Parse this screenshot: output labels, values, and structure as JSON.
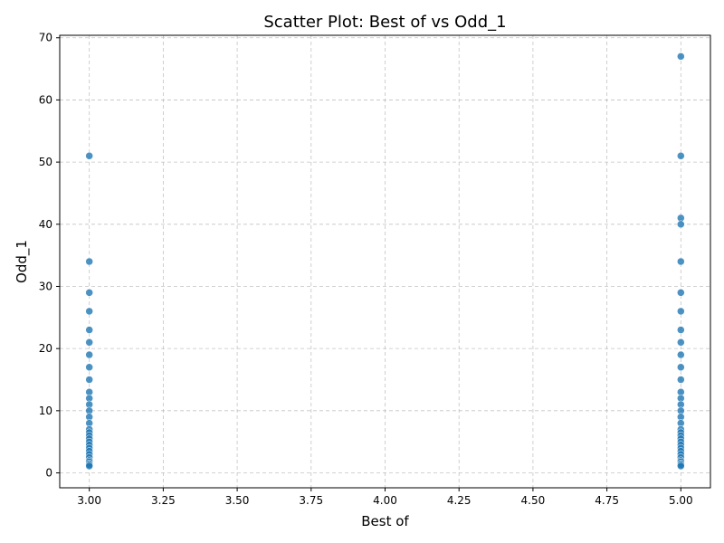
{
  "chart_data": {
    "type": "scatter",
    "title": "Scatter Plot: Best of vs Odd_1",
    "xlabel": "Best of",
    "ylabel": "Odd_1",
    "xlim": [
      2.9,
      5.1
    ],
    "ylim": [
      -2.4,
      70.4
    ],
    "grid": true,
    "xticks": [
      "3.00",
      "3.25",
      "3.50",
      "3.75",
      "4.00",
      "4.25",
      "4.50",
      "4.75",
      "5.00"
    ],
    "xtick_values": [
      3.0,
      3.25,
      3.5,
      3.75,
      4.0,
      4.25,
      4.5,
      4.75,
      5.0
    ],
    "yticks": [
      "0",
      "10",
      "20",
      "30",
      "40",
      "50",
      "60",
      "70"
    ],
    "ytick_values": [
      0,
      10,
      20,
      30,
      40,
      50,
      60,
      70
    ],
    "point_color": "#1f77b4",
    "series": [
      {
        "points": [
          {
            "x": 3,
            "y": 51
          },
          {
            "x": 3,
            "y": 34
          },
          {
            "x": 3,
            "y": 29
          },
          {
            "x": 3,
            "y": 26
          },
          {
            "x": 3,
            "y": 23
          },
          {
            "x": 3,
            "y": 21
          },
          {
            "x": 3,
            "y": 19
          },
          {
            "x": 3,
            "y": 17
          },
          {
            "x": 3,
            "y": 15
          },
          {
            "x": 3,
            "y": 13
          },
          {
            "x": 3,
            "y": 12
          },
          {
            "x": 3,
            "y": 11
          },
          {
            "x": 3,
            "y": 10
          },
          {
            "x": 3,
            "y": 9
          },
          {
            "x": 3,
            "y": 8
          },
          {
            "x": 3,
            "y": 7
          },
          {
            "x": 3,
            "y": 6.5
          },
          {
            "x": 3,
            "y": 6
          },
          {
            "x": 3,
            "y": 5.5
          },
          {
            "x": 3,
            "y": 5
          },
          {
            "x": 3,
            "y": 4.5
          },
          {
            "x": 3,
            "y": 4
          },
          {
            "x": 3,
            "y": 3.5
          },
          {
            "x": 3,
            "y": 3
          },
          {
            "x": 3,
            "y": 2.5
          },
          {
            "x": 3,
            "y": 2
          },
          {
            "x": 3,
            "y": 1.8
          },
          {
            "x": 3,
            "y": 1.5
          },
          {
            "x": 3,
            "y": 1.3
          },
          {
            "x": 3,
            "y": 1.1
          },
          {
            "x": 5,
            "y": 67
          },
          {
            "x": 5,
            "y": 51
          },
          {
            "x": 5,
            "y": 41
          },
          {
            "x": 5,
            "y": 40
          },
          {
            "x": 5,
            "y": 34
          },
          {
            "x": 5,
            "y": 29
          },
          {
            "x": 5,
            "y": 26
          },
          {
            "x": 5,
            "y": 23
          },
          {
            "x": 5,
            "y": 21
          },
          {
            "x": 5,
            "y": 19
          },
          {
            "x": 5,
            "y": 17
          },
          {
            "x": 5,
            "y": 15
          },
          {
            "x": 5,
            "y": 13
          },
          {
            "x": 5,
            "y": 12
          },
          {
            "x": 5,
            "y": 11
          },
          {
            "x": 5,
            "y": 10
          },
          {
            "x": 5,
            "y": 9
          },
          {
            "x": 5,
            "y": 8
          },
          {
            "x": 5,
            "y": 7
          },
          {
            "x": 5,
            "y": 6.5
          },
          {
            "x": 5,
            "y": 6
          },
          {
            "x": 5,
            "y": 5.5
          },
          {
            "x": 5,
            "y": 5
          },
          {
            "x": 5,
            "y": 4.5
          },
          {
            "x": 5,
            "y": 4
          },
          {
            "x": 5,
            "y": 3.5
          },
          {
            "x": 5,
            "y": 3
          },
          {
            "x": 5,
            "y": 2.5
          },
          {
            "x": 5,
            "y": 2
          },
          {
            "x": 5,
            "y": 1.8
          },
          {
            "x": 5,
            "y": 1.5
          },
          {
            "x": 5,
            "y": 1.3
          },
          {
            "x": 5,
            "y": 1.1
          }
        ]
      }
    ]
  }
}
